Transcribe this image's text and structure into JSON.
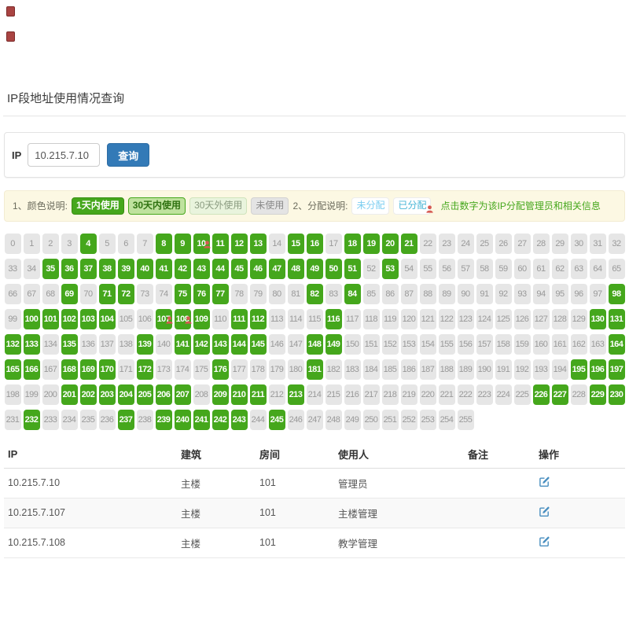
{
  "page": {
    "title": "IP段地址使用情况查询"
  },
  "query": {
    "ip_label": "IP",
    "ip_value": "10.215.7.10",
    "search_button": "查询"
  },
  "legend": {
    "color_prefix": "1、颜色说明:",
    "badges": [
      {
        "label": "1天内使用",
        "type": "used-within-1-day"
      },
      {
        "label": "30天内使用",
        "type": "used-within-30-days"
      },
      {
        "label": "30天外使用",
        "type": "used-beyond-30-days"
      },
      {
        "label": "未使用",
        "type": "unused"
      }
    ],
    "assign_prefix": "2、分配说明:",
    "assign": [
      {
        "label": "未分配"
      },
      {
        "label": "已分配",
        "icon": "person-icon"
      }
    ],
    "hint": "点击数字为该IP分配管理员和相关信息"
  },
  "grid": {
    "total": 256,
    "columns": 33,
    "used": [
      4,
      8,
      9,
      10,
      11,
      12,
      13,
      15,
      16,
      18,
      19,
      20,
      21,
      35,
      36,
      37,
      38,
      39,
      40,
      41,
      42,
      43,
      44,
      45,
      46,
      47,
      48,
      49,
      50,
      51,
      53,
      69,
      71,
      72,
      75,
      76,
      77,
      82,
      84,
      98,
      100,
      101,
      102,
      103,
      104,
      107,
      108,
      109,
      111,
      112,
      116,
      130,
      131,
      132,
      133,
      135,
      139,
      141,
      142,
      143,
      144,
      145,
      148,
      149,
      164,
      165,
      166,
      168,
      169,
      170,
      172,
      176,
      181,
      195,
      196,
      197,
      201,
      202,
      203,
      204,
      205,
      206,
      207,
      209,
      210,
      211,
      213,
      226,
      227,
      229,
      230,
      232,
      237,
      239,
      240,
      241,
      242,
      243,
      245
    ],
    "allocated": [
      10,
      107,
      108
    ]
  },
  "table": {
    "headers": [
      "IP",
      "建筑",
      "房间",
      "使用人",
      "备注",
      "操作"
    ],
    "rows": [
      {
        "ip": "10.215.7.10",
        "building": "主楼",
        "room": "101",
        "user": "管理员",
        "remark": ""
      },
      {
        "ip": "10.215.7.107",
        "building": "主楼",
        "room": "101",
        "user": "主楼管理",
        "remark": ""
      },
      {
        "ip": "10.215.7.108",
        "building": "主楼",
        "room": "101",
        "user": "教学管理",
        "remark": ""
      }
    ]
  },
  "colors": {
    "used_green": "#45a71c",
    "unused_gray": "#e6e6e6",
    "primary_blue": "#337ab7",
    "alert_bg": "#fcf8e3",
    "allocated_red": "#d65a52",
    "edit_icon_blue": "#4a8fc0"
  }
}
